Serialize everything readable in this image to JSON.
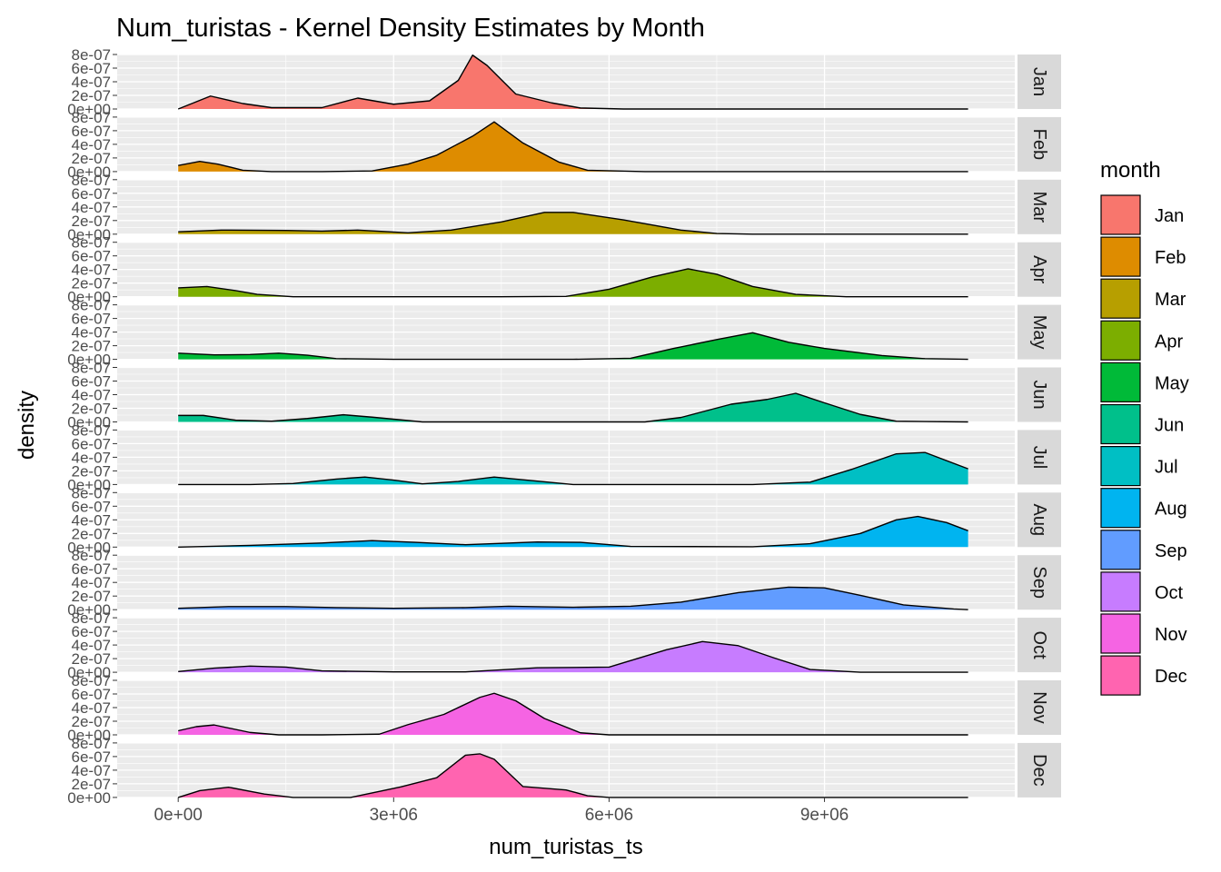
{
  "chart_data": {
    "type": "area",
    "title": "Num_turistas - Kernel Density Estimates by Month",
    "xlabel": "num_turistas_ts",
    "ylabel": "density",
    "xlim": [
      -850000,
      11650000
    ],
    "ylim": [
      0,
      8e-07
    ],
    "x_ticks": [
      0,
      3000000,
      6000000,
      9000000
    ],
    "x_tick_labels": [
      "0e+00",
      "3e+06",
      "6e+06",
      "9e+06"
    ],
    "y_ticks": [
      0,
      2e-07,
      4e-07,
      6e-07,
      8e-07
    ],
    "y_tick_labels": [
      "0e+00",
      "2e-07",
      "4e-07",
      "6e-07",
      "8e-07"
    ],
    "grid": true,
    "legend_title": "month",
    "legend_position": "right",
    "facet_direction": "rows",
    "series": [
      {
        "name": "Jan",
        "color": "#F8766D",
        "x": [
          0,
          450000,
          900000,
          1300000,
          2000000,
          2500000,
          3000000,
          3500000,
          3900000,
          4100000,
          4300000,
          4700000,
          5200000,
          5600000,
          6200000,
          11000000
        ],
        "y": [
          0,
          1.9e-07,
          8e-08,
          2e-08,
          2e-08,
          1.6e-07,
          7e-08,
          1.2e-07,
          4.2e-07,
          7.9e-07,
          6.4e-07,
          2.2e-07,
          9e-08,
          1.5e-08,
          0,
          0
        ]
      },
      {
        "name": "Feb",
        "color": "#DE8C00",
        "x": [
          0,
          300000,
          550000,
          900000,
          1300000,
          2000000,
          2700000,
          3200000,
          3600000,
          4100000,
          4400000,
          4800000,
          5300000,
          5700000,
          6500000,
          11000000
        ],
        "y": [
          9e-08,
          1.5e-07,
          1.1e-07,
          2e-08,
          0,
          0,
          1e-08,
          1.1e-07,
          2.4e-07,
          5.2e-07,
          7.3e-07,
          4.2e-07,
          1.4e-07,
          2e-08,
          0,
          0
        ]
      },
      {
        "name": "Mar",
        "color": "#B79F00",
        "x": [
          0,
          600000,
          1500000,
          2000000,
          2500000,
          3200000,
          3800000,
          4500000,
          5100000,
          5500000,
          6200000,
          7000000,
          7500000,
          8000000,
          11000000
        ],
        "y": [
          3.5e-08,
          6e-08,
          5.5e-08,
          4.5e-08,
          6e-08,
          2e-08,
          6e-08,
          1.8e-07,
          3.2e-07,
          3.2e-07,
          2.1e-07,
          6e-08,
          1e-08,
          0,
          0
        ]
      },
      {
        "name": "Apr",
        "color": "#7CAE00",
        "x": [
          0,
          400000,
          800000,
          1100000,
          1600000,
          3000000,
          4500000,
          5400000,
          6000000,
          6600000,
          7100000,
          7500000,
          8000000,
          8600000,
          9300000,
          11000000
        ],
        "y": [
          1.3e-07,
          1.5e-07,
          9e-08,
          3.5e-08,
          0,
          0,
          0,
          5e-09,
          1.1e-07,
          2.9e-07,
          4.1e-07,
          3.3e-07,
          1.5e-07,
          3.5e-08,
          0,
          0
        ]
      },
      {
        "name": "May",
        "color": "#00BA38",
        "x": [
          0,
          500000,
          1000000,
          1400000,
          1800000,
          2200000,
          3000000,
          5500000,
          6300000,
          6900000,
          7500000,
          8000000,
          8500000,
          9000000,
          9800000,
          10400000,
          11000000
        ],
        "y": [
          9e-08,
          6.5e-08,
          7e-08,
          9e-08,
          6e-08,
          1e-08,
          0,
          0,
          1.5e-08,
          1.6e-07,
          2.9e-07,
          3.9e-07,
          2.5e-07,
          1.6e-07,
          5.5e-08,
          1e-08,
          0
        ]
      },
      {
        "name": "Jun",
        "color": "#00C08B",
        "x": [
          0,
          350000,
          800000,
          1300000,
          1800000,
          2300000,
          2700000,
          3400000,
          6500000,
          7000000,
          7700000,
          8200000,
          8600000,
          9000000,
          9500000,
          10000000,
          11000000
        ],
        "y": [
          9.5e-08,
          9.5e-08,
          2.5e-08,
          1e-08,
          5e-08,
          1.05e-07,
          7e-08,
          0,
          0,
          6.5e-08,
          2.6e-07,
          3.3e-07,
          4.2e-07,
          2.8e-07,
          1.1e-07,
          1e-08,
          0
        ]
      },
      {
        "name": "Jul",
        "color": "#00BFC4",
        "x": [
          0,
          1000000,
          1600000,
          2200000,
          2600000,
          3000000,
          3400000,
          3900000,
          4400000,
          4900000,
          5500000,
          8000000,
          8800000,
          9400000,
          10000000,
          10400000,
          11000000
        ],
        "y": [
          0,
          0,
          1.5e-08,
          8e-08,
          1.1e-07,
          6.5e-08,
          1e-08,
          4.5e-08,
          1.1e-07,
          6e-08,
          0,
          0,
          3.5e-08,
          2.3e-07,
          4.5e-07,
          4.7e-07,
          2.3e-07
        ]
      },
      {
        "name": "Aug",
        "color": "#00B4F0",
        "x": [
          0,
          1000000,
          2000000,
          2700000,
          3300000,
          4000000,
          5000000,
          5600000,
          6300000,
          8000000,
          8800000,
          9500000,
          10000000,
          10300000,
          10700000,
          11000000
        ],
        "y": [
          0,
          2.5e-08,
          6e-08,
          9.5e-08,
          7e-08,
          3.5e-08,
          7.5e-08,
          7e-08,
          1e-08,
          5e-09,
          5e-08,
          2e-07,
          4e-07,
          4.5e-07,
          3.6e-07,
          2.4e-07
        ]
      },
      {
        "name": "Sep",
        "color": "#619CFF",
        "x": [
          0,
          700000,
          1500000,
          2200000,
          3000000,
          4000000,
          4600000,
          5500000,
          6300000,
          7000000,
          7800000,
          8500000,
          9000000,
          9500000,
          10100000,
          10800000,
          11000000
        ],
        "y": [
          2e-08,
          4.5e-08,
          4.5e-08,
          3e-08,
          2e-08,
          3e-08,
          5e-08,
          3.5e-08,
          5e-08,
          1.1e-07,
          2.5e-07,
          3.3e-07,
          3.2e-07,
          2.1e-07,
          7e-08,
          1e-08,
          0
        ]
      },
      {
        "name": "Oct",
        "color": "#C77CFF",
        "x": [
          0,
          500000,
          1000000,
          1500000,
          2000000,
          3000000,
          4000000,
          5000000,
          6000000,
          6800000,
          7300000,
          7800000,
          8300000,
          8800000,
          9500000,
          11000000
        ],
        "y": [
          1e-08,
          6e-08,
          9e-08,
          7.5e-08,
          2e-08,
          5e-09,
          5e-09,
          6.5e-08,
          7.5e-08,
          3.3e-07,
          4.5e-07,
          3.9e-07,
          2.1e-07,
          4e-08,
          0,
          0
        ]
      },
      {
        "name": "Nov",
        "color": "#F564E3",
        "x": [
          0,
          250000,
          500000,
          1000000,
          1400000,
          2000000,
          2800000,
          3200000,
          3700000,
          4200000,
          4400000,
          4700000,
          5100000,
          5600000,
          6000000,
          11000000
        ],
        "y": [
          6e-08,
          1.2e-07,
          1.45e-07,
          3.5e-08,
          0,
          0,
          1e-08,
          1.5e-07,
          3e-07,
          5.5e-07,
          6.1e-07,
          5e-07,
          2.4e-07,
          3e-08,
          0,
          0
        ]
      },
      {
        "name": "Dec",
        "color": "#FF64B0",
        "x": [
          0,
          300000,
          700000,
          1200000,
          1600000,
          2400000,
          3100000,
          3600000,
          4000000,
          4200000,
          4400000,
          4800000,
          5400000,
          5700000,
          6000000,
          11000000
        ],
        "y": [
          0,
          1e-07,
          1.5e-07,
          5e-08,
          0,
          0,
          1.55e-07,
          2.9e-07,
          6.2e-07,
          6.4e-07,
          5.6e-07,
          1.6e-07,
          1.1e-07,
          2.5e-08,
          0,
          0
        ]
      }
    ]
  }
}
